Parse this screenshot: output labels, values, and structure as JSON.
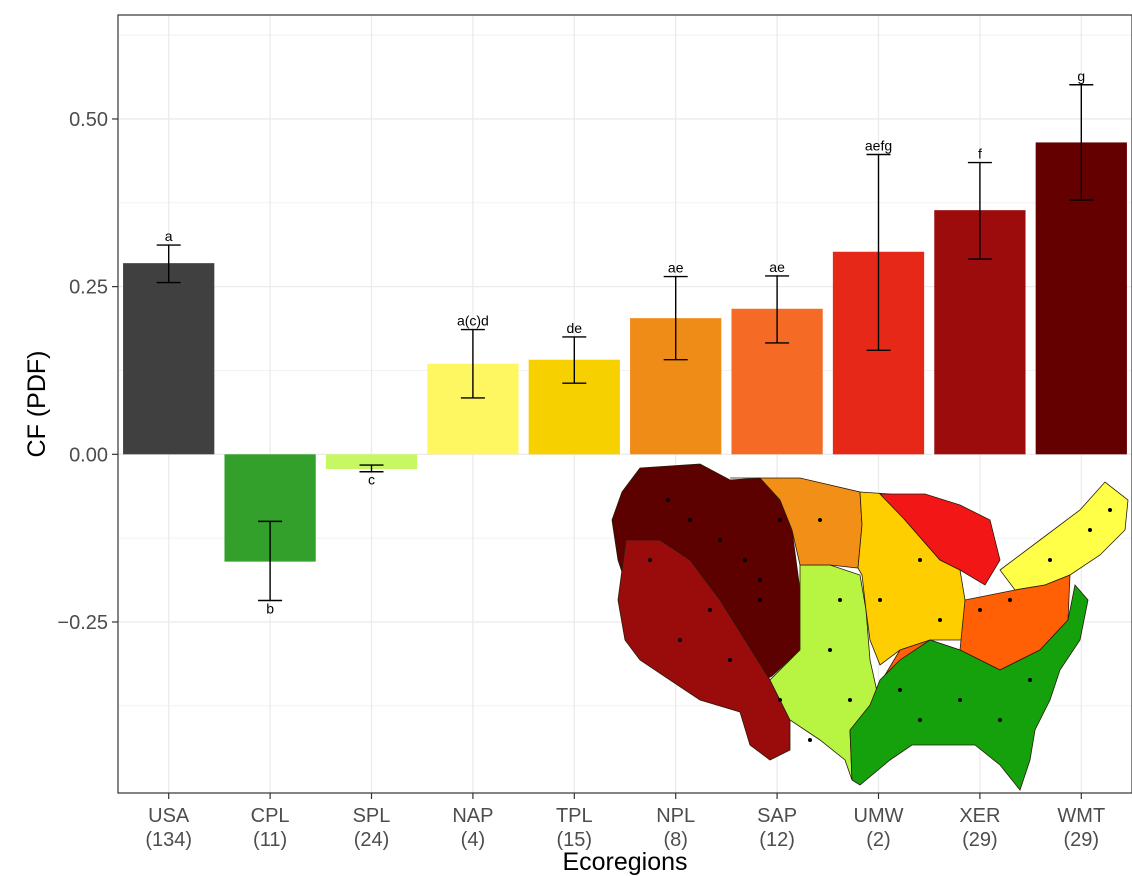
{
  "chart_data": {
    "type": "bar",
    "xlabel": "Ecoregions",
    "ylabel": "CF (PDF)",
    "ylim": [
      -0.505,
      0.655
    ],
    "yticks": [
      -0.25,
      0.0,
      0.25,
      0.5
    ],
    "ytick_labels": [
      "−0.25",
      "0.00",
      "0.25",
      "0.50"
    ],
    "grid": true,
    "legend": "none",
    "categories": [
      "USA",
      "CPL",
      "SPL",
      "NAP",
      "TPL",
      "NPL",
      "SAP",
      "UMW",
      "XER",
      "WMT"
    ],
    "counts": [
      "(134)",
      "(11)",
      "(24)",
      "(4)",
      "(15)",
      "(8)",
      "(12)",
      "(2)",
      "(29)",
      "(29)"
    ],
    "values": [
      0.285,
      -0.16,
      -0.022,
      0.135,
      0.141,
      0.203,
      0.217,
      0.302,
      0.364,
      0.465
    ],
    "error_low": [
      0.256,
      -0.218,
      -0.026,
      0.084,
      0.106,
      0.141,
      0.166,
      0.155,
      0.291,
      0.379
    ],
    "error_high": [
      0.312,
      -0.1,
      -0.016,
      0.186,
      0.175,
      0.265,
      0.266,
      0.447,
      0.435,
      0.551
    ],
    "significance_labels": [
      "a",
      "b",
      "c",
      "a(c)d",
      "de",
      "ae",
      "ae",
      "aefg",
      "f",
      "g"
    ],
    "colors": [
      "#404040",
      "#33a02c",
      "#c7f763",
      "#fff761",
      "#f7d000",
      "#ef8b17",
      "#f56b25",
      "#e52818",
      "#9c0c0c",
      "#640000"
    ]
  },
  "inset_map": {
    "regions": [
      {
        "code": "WMT",
        "color": "#5c0000"
      },
      {
        "code": "XER",
        "color": "#9a0c0c"
      },
      {
        "code": "SPL",
        "color": "#b8f442"
      },
      {
        "code": "NPL",
        "color": "#f18f17"
      },
      {
        "code": "TPL",
        "color": "#ffce00"
      },
      {
        "code": "UMW",
        "color": "#f21616"
      },
      {
        "code": "NAP",
        "color": "#ffff48"
      },
      {
        "code": "SAP",
        "color": "#ff5f05"
      },
      {
        "code": "CPL",
        "color": "#15a10c"
      }
    ]
  }
}
